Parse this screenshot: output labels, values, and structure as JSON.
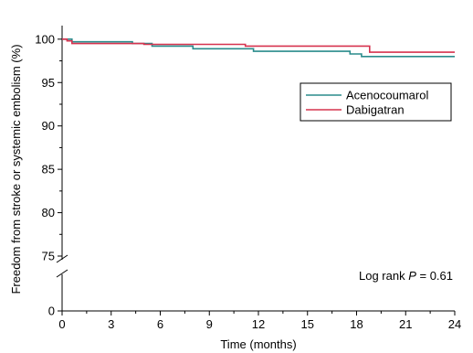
{
  "chart_data": {
    "type": "line",
    "xlabel": "Time (months)",
    "ylabel": "Freedom from stroke or systemic embolism (%)",
    "x_ticks": [
      0,
      3,
      6,
      9,
      12,
      15,
      18,
      21,
      24
    ],
    "y_ticks": [
      0,
      75,
      80,
      85,
      90,
      95,
      100
    ],
    "xlim": [
      0,
      24
    ],
    "ylim_upper": [
      75,
      101.5
    ],
    "ylim_lower": [
      0,
      1
    ],
    "y_axis_break": true,
    "grid": false,
    "legend_position": "right-upper",
    "series": [
      {
        "name": "Acenocoumarol",
        "color": "#2a8c8c",
        "step": true,
        "x": [
          0,
          0.6,
          4.3,
          5.5,
          8.0,
          11.7,
          17.6,
          18.3,
          24
        ],
        "y": [
          100,
          99.7,
          99.5,
          99.2,
          98.9,
          98.6,
          98.3,
          98.0,
          98.0
        ]
      },
      {
        "name": "Dabigatran",
        "color": "#d6334f",
        "step": true,
        "x": [
          0,
          0.3,
          0.6,
          5.0,
          11.2,
          18.8,
          24
        ],
        "y": [
          100,
          99.8,
          99.5,
          99.4,
          99.2,
          98.5,
          98.5
        ]
      }
    ],
    "annotation": {
      "prefix": "Log rank ",
      "p_symbol": "P",
      "p_value": " = 0.61"
    }
  }
}
